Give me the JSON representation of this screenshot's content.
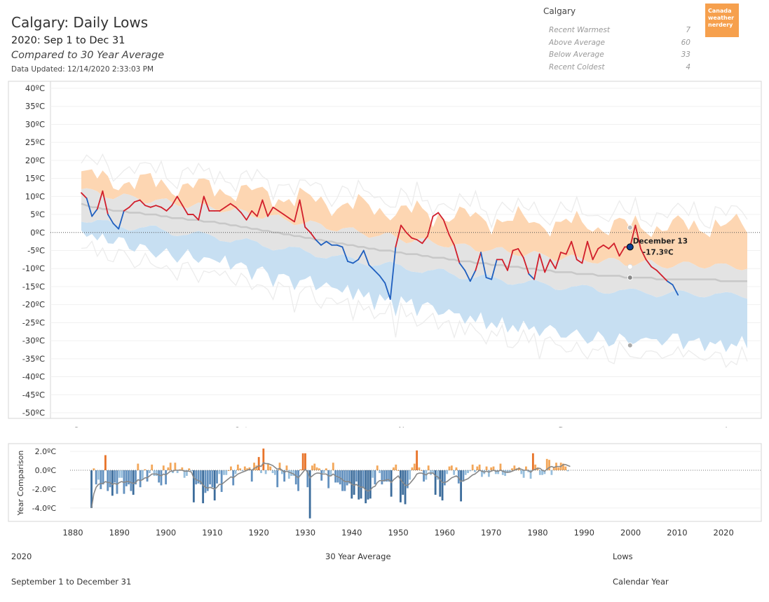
{
  "header": {
    "title": "Calgary: Daily Lows",
    "subtitle": "2020: Sep 1 to Dec 31",
    "compared": "Compared to 30 Year Average",
    "updated": "Data Updated: 12/14/2020 2:33:03 PM"
  },
  "summary": {
    "city": "Calgary",
    "rows": [
      {
        "label": "Recent Warmest",
        "value": "7"
      },
      {
        "label": "Above Average",
        "value": "60"
      },
      {
        "label": "Below Average",
        "value": "33"
      },
      {
        "label": "Recent Coldest",
        "value": "4"
      }
    ]
  },
  "logo": {
    "line1": "Canada",
    "line2": "weather",
    "line3": "nerdery"
  },
  "chart_data": [
    {
      "type": "line",
      "title": "Calgary: Daily Lows",
      "y_ticks": [
        "40ºC",
        "35ºC",
        "30ºC",
        "25ºC",
        "20ºC",
        "15ºC",
        "10ºC",
        "5ºC",
        "0ºC",
        "-5ºC",
        "-10ºC",
        "-15ºC",
        "-20ºC",
        "-25ºC",
        "-30ºC",
        "-35ºC",
        "-40ºC",
        "-45ºC",
        "-50ºC"
      ],
      "ylim": [
        -50,
        40
      ],
      "month_labels": [
        "Sep",
        "Oct",
        "Nov",
        "Dec",
        "Jan"
      ],
      "month_start_day": [
        0,
        30,
        61,
        91,
        122
      ],
      "colors": {
        "above": "#d11e2b",
        "below": "#1f5fbf",
        "warm_band": "#fdd6b2",
        "avg_band": "#e3e3e3",
        "cold_band": "#c7dff2",
        "avg_line": "#c8c8c8",
        "record_line": "#ececec"
      },
      "series": [
        {
          "name": "2020",
          "values": [
            11,
            9.5,
            4.5,
            6.5,
            11.5,
            5,
            2.5,
            1,
            6,
            7,
            8.5,
            9,
            7.5,
            7,
            7.5,
            7,
            6,
            7.5,
            10,
            7.5,
            5,
            5,
            3.5,
            10,
            6,
            6,
            6,
            7,
            8,
            7,
            5.5,
            3.5,
            6,
            4.5,
            9,
            4.5,
            7,
            6,
            5,
            4,
            3,
            9,
            1.5,
            0,
            -2,
            -3.5,
            -2.5,
            -3.5,
            -3.5,
            -4,
            -8,
            -8.5,
            -7.5,
            -5,
            -9,
            -10.5,
            -12,
            -14,
            -18.5,
            -4,
            2,
            0,
            -1.5,
            -2,
            -3,
            -1,
            4.5,
            5.5,
            3.5,
            -0.5,
            -3.5,
            -8.5,
            -10.5,
            -13.5,
            -10.5,
            -5.5,
            -12.5,
            -13,
            -7.5,
            -7.5,
            -10.5,
            -5,
            -4.5,
            -7,
            -11.5,
            -13,
            -6,
            -11,
            -7.5,
            -10,
            -5.5,
            -6,
            -2.5,
            -7.5,
            -8.5,
            -2.5,
            -7.5,
            -4.5,
            -3.5,
            -4.5,
            -3,
            -6.5,
            -4,
            -4,
            2,
            -4.5,
            -7.5,
            -9.5,
            -10.5,
            -12,
            -13.5,
            -14.5,
            -17.3
          ]
        },
        {
          "name": "30 Year Average",
          "values": [
            8,
            7.5,
            7,
            7,
            6.5,
            6.5,
            6,
            6,
            6,
            5.5,
            5.5,
            5.5,
            5,
            5,
            5,
            4.5,
            4.5,
            4,
            4,
            4,
            3.5,
            3.5,
            3.5,
            3,
            3,
            3,
            2.5,
            2.5,
            2,
            2,
            1.5,
            1.5,
            1,
            1,
            0.5,
            0.5,
            0,
            0,
            -0.5,
            -0.5,
            -1,
            -1,
            -1.5,
            -1.5,
            -2,
            -2,
            -2.5,
            -2.5,
            -3,
            -3,
            -3.5,
            -3.5,
            -4,
            -4,
            -4.5,
            -4.5,
            -5,
            -5,
            -5,
            -5.5,
            -5.5,
            -6,
            -6,
            -6,
            -6.5,
            -6.5,
            -7,
            -7,
            -7,
            -7.5,
            -7.5,
            -8,
            -8,
            -8,
            -8.5,
            -8.5,
            -8.5,
            -9,
            -9,
            -9,
            -9.5,
            -9.5,
            -9.5,
            -10,
            -10,
            -10,
            -10.5,
            -10.5,
            -10.5,
            -11,
            -11,
            -11,
            -11,
            -11.5,
            -11.5,
            -11.5,
            -11.5,
            -12,
            -12,
            -12,
            -12,
            -12,
            -12.5,
            -12.5,
            -12.5,
            -12.5,
            -12.5,
            -12.5,
            -13,
            -13,
            -13,
            -13,
            -13,
            -13,
            -13,
            -13,
            -13,
            -13,
            -13,
            -13,
            -13.5,
            -13.5,
            -13.5,
            -13.5,
            -13.5,
            -13.5
          ]
        }
      ],
      "annotation": {
        "date": "December 13",
        "value": "-17.3ºC",
        "day_index": 103
      }
    },
    {
      "type": "bar",
      "ylabel": "Year Comparison",
      "xlabel": "",
      "y_ticks": [
        "2.0ºC",
        "0.0ºC",
        "-2.0ºC",
        "-4.0ºC"
      ],
      "ylim": [
        -5.2,
        2.6
      ],
      "x_ticks": [
        1880,
        1890,
        1900,
        1910,
        1920,
        1930,
        1940,
        1950,
        1960,
        1970,
        1980,
        1990,
        2000,
        2010,
        2020
      ],
      "years_start": 1884,
      "values": [
        -4,
        0.2,
        -1.5,
        -1,
        -2,
        -1.5,
        1.6,
        -2.2,
        -1.8,
        -2.7,
        -1.3,
        -2.5,
        -0.8,
        -0.8,
        -2.5,
        -1.7,
        -1.5,
        -2.2,
        -2.6,
        -1.5,
        0.7,
        -1.8,
        -1,
        0.1,
        -1.2,
        -0.3,
        0.6,
        -0.6,
        -0.6,
        -1.3,
        -1.6,
        0.5,
        -1.5,
        0.3,
        0.8,
        -0.3,
        0.8,
        -0.3,
        0.1,
        0.3,
        -0.8,
        -0.6,
        0.2,
        -0.1,
        -3.4,
        -1.5,
        -1.4,
        -1.5,
        -3.5,
        -2.4,
        -2.2,
        -1.5,
        -1.8,
        -3.2,
        -1.4,
        -0.4,
        -2.3,
        -0.5,
        -0.5,
        0,
        0.4,
        -1.6,
        -0.4,
        0.6,
        0.2,
        -0.1,
        0.4,
        0.2,
        0.3,
        -1.2,
        0.8,
        0.5,
        1.4,
        -0.3,
        2.3,
        -0.4,
        0.7,
        0.4,
        -0.3,
        -0.5,
        -1.8,
        0.8,
        -0.4,
        -1.2,
        0.5,
        -0.9,
        -0.6,
        -0.6,
        -1.5,
        -2.2,
        0.1,
        1.8,
        1.8,
        -1.8,
        -5.1,
        0.5,
        0.7,
        0.3,
        0.2,
        -1.1,
        -0.3,
        0.2,
        -1.9,
        -0.6,
        0.8,
        -1.3,
        -1.3,
        -1.5,
        -2.2,
        -2.2,
        -1.6,
        -1.4,
        -3,
        -2.6,
        -1.2,
        -3.1,
        -3,
        -1.9,
        -3.5,
        -3.1,
        -3,
        -0.8,
        -1.5,
        0.5,
        -0.3,
        -1.5,
        -1.2,
        -1.2,
        -1.2,
        -2.8,
        0.3,
        0.6,
        0,
        -3.4,
        -2.6,
        -3.6,
        -1.9,
        -1,
        0.3,
        0.7,
        2.1,
        0.3,
        0,
        -1.2,
        -1,
        0.5,
        -0.5,
        -0.3,
        -2.6,
        -1,
        -2.8,
        -3.2,
        -1.6,
        -0.4,
        0.4,
        0.5,
        -0.5,
        0.3,
        -1.4,
        -3.3,
        -1.2,
        -0.5,
        -0.3,
        -0.1,
        0.6,
        -0.2,
        0.4,
        0.6,
        -0.7,
        -0.4,
        0.4,
        -0.7,
        0.3,
        0.4,
        -0.4,
        -0.4,
        0.7,
        -0.5,
        -0.6,
        -0.3,
        -0.2,
        0.2,
        0.5,
        0.2,
        0.3,
        -0.4,
        -0.8,
        0.4,
        -0.2,
        -0.9,
        1.8,
        0.6,
        0.3,
        -0.5,
        -0.5,
        -0.4,
        1.2,
        1.1,
        -0.5,
        0.3,
        0.8,
        0.3,
        0.8,
        0.7,
        0.4,
        -0.1
      ],
      "trend": [
        -4,
        -2.5,
        -1.8,
        -1.5,
        -1.4,
        -1.4,
        -1.2,
        -1.3,
        -1.3,
        -1.5,
        -1.4,
        -1.5,
        -1.3,
        -1.2,
        -1.3,
        -1.2,
        -1.2,
        -1.3,
        -1.4,
        -1.3,
        -1,
        -1.1,
        -1,
        -0.8,
        -0.8,
        -0.6,
        -0.4,
        -0.4,
        -0.4,
        -0.5,
        -0.6,
        -0.4,
        -0.5,
        -0.3,
        -0.1,
        -0.1,
        0,
        0,
        0,
        0,
        -0.1,
        -0.1,
        -0.1,
        -0.2,
        -0.8,
        -1,
        -1.1,
        -1.2,
        -1.6,
        -1.8,
        -1.9,
        -1.8,
        -1.9,
        -2,
        -1.8,
        -1.5,
        -1.5,
        -1.3,
        -1.1,
        -0.9,
        -0.7,
        -0.8,
        -0.6,
        -0.4,
        -0.3,
        -0.2,
        -0.1,
        0,
        0.1,
        0,
        0.2,
        0.3,
        0.5,
        0.4,
        0.8,
        0.7,
        0.7,
        0.6,
        0.5,
        0.3,
        0.1,
        0.2,
        0,
        -0.2,
        -0.1,
        -0.2,
        -0.3,
        -0.4,
        -0.6,
        -0.8,
        -0.5,
        -0.2,
        0.1,
        -0.2,
        -0.8,
        -0.6,
        -0.4,
        -0.3,
        -0.3,
        -0.4,
        -0.4,
        -0.4,
        -0.6,
        -0.6,
        -0.4,
        -0.6,
        -0.7,
        -0.8,
        -1,
        -1.2,
        -1.2,
        -1.2,
        -1.5,
        -1.6,
        -1.5,
        -1.7,
        -1.8,
        -1.8,
        -2.1,
        -2.2,
        -2.1,
        -1.8,
        -1.7,
        -1.3,
        -1.1,
        -1.1,
        -1.1,
        -1,
        -1,
        -1.3,
        -1,
        -0.8,
        -0.6,
        -1,
        -1.3,
        -1.6,
        -1.6,
        -1.4,
        -1.1,
        -0.8,
        -0.4,
        -0.3,
        -0.3,
        -0.4,
        -0.5,
        -0.3,
        -0.3,
        -0.3,
        -0.6,
        -0.7,
        -1,
        -1.3,
        -1.3,
        -1.2,
        -1,
        -0.8,
        -0.7,
        -0.6,
        -0.8,
        -1.2,
        -1.1,
        -1,
        -0.9,
        -0.7,
        -0.5,
        -0.4,
        -0.2,
        0,
        -0.1,
        -0.2,
        -0.1,
        -0.2,
        -0.1,
        0,
        -0.1,
        -0.1,
        0,
        -0.1,
        -0.2,
        -0.2,
        -0.2,
        -0.1,
        0,
        0.1,
        0.2,
        0.1,
        0,
        0,
        0,
        -0.2,
        0,
        0.1,
        0.2,
        0.2,
        0,
        -0.1,
        0.1,
        0.3,
        0.4,
        0.3,
        0.4,
        0.4,
        0.4,
        0.6,
        0.6,
        0.5,
        0.4
      ]
    }
  ],
  "footer": {
    "left_top": "2020",
    "left_bottom": "September 1 to December 31",
    "center": "30 Year Average",
    "right_top": "Lows",
    "right_bottom": "Calendar Year"
  }
}
